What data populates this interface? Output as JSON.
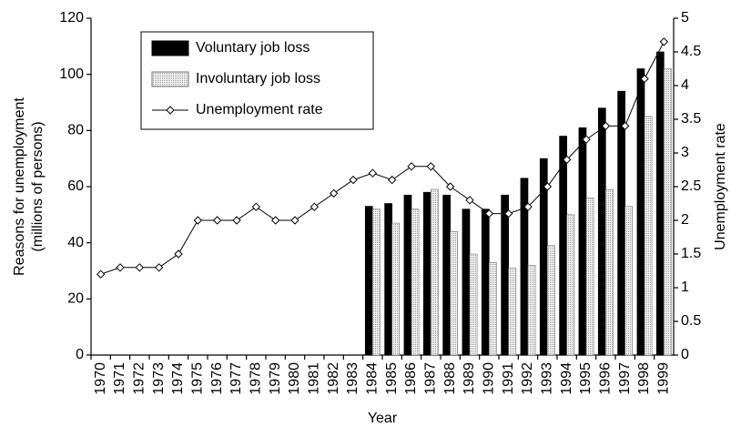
{
  "chart_data": {
    "type": "bar-line",
    "x_label": "Year",
    "y_label": [
      "Reasons for unemployment",
      "(millions of persons)"
    ],
    "y2_label": "Unemployment rate",
    "categories": [
      "1970",
      "1971",
      "1972",
      "1973",
      "1974",
      "1975",
      "1976",
      "1977",
      "1978",
      "1979",
      "1980",
      "1981",
      "1982",
      "1983",
      "1984",
      "1985",
      "1986",
      "1987",
      "1988",
      "1989",
      "1990",
      "1991",
      "1992",
      "1993",
      "1994",
      "1995",
      "1996",
      "1997",
      "1998",
      "1999"
    ],
    "series": [
      {
        "name": "Voluntary job loss",
        "type": "bar",
        "color": "#000000",
        "values": [
          null,
          null,
          null,
          null,
          null,
          null,
          null,
          null,
          null,
          null,
          null,
          null,
          null,
          null,
          53,
          54,
          57,
          58,
          57,
          52,
          52,
          57,
          63,
          70,
          78,
          81,
          88,
          94,
          102,
          108
        ]
      },
      {
        "name": "Involuntary job loss",
        "type": "bar",
        "color": "#dcdcdc",
        "values": [
          null,
          null,
          null,
          null,
          null,
          null,
          null,
          null,
          null,
          null,
          null,
          null,
          null,
          null,
          52,
          47,
          52,
          59,
          44,
          36,
          33,
          31,
          32,
          39,
          50,
          56,
          59,
          53,
          85,
          102
        ]
      },
      {
        "name": "Unemployment rate",
        "type": "line",
        "axis": "y2",
        "color": "#000000",
        "values": [
          1.2,
          1.3,
          1.3,
          1.3,
          1.5,
          2.0,
          2.0,
          2.0,
          2.2,
          2.0,
          2.0,
          2.2,
          2.4,
          2.6,
          2.7,
          2.6,
          2.8,
          2.8,
          2.5,
          2.3,
          2.1,
          2.1,
          2.2,
          2.5,
          2.9,
          3.2,
          3.4,
          3.4,
          4.1,
          4.65
        ]
      }
    ],
    "ylim": [
      0,
      120
    ],
    "yticks": [
      0,
      20,
      40,
      60,
      80,
      100,
      120
    ],
    "y2lim": [
      0,
      5
    ],
    "y2ticks": [
      0,
      0.5,
      1,
      1.5,
      2,
      2.5,
      3,
      3.5,
      4,
      4.5,
      5
    ],
    "legend": "upper left"
  }
}
